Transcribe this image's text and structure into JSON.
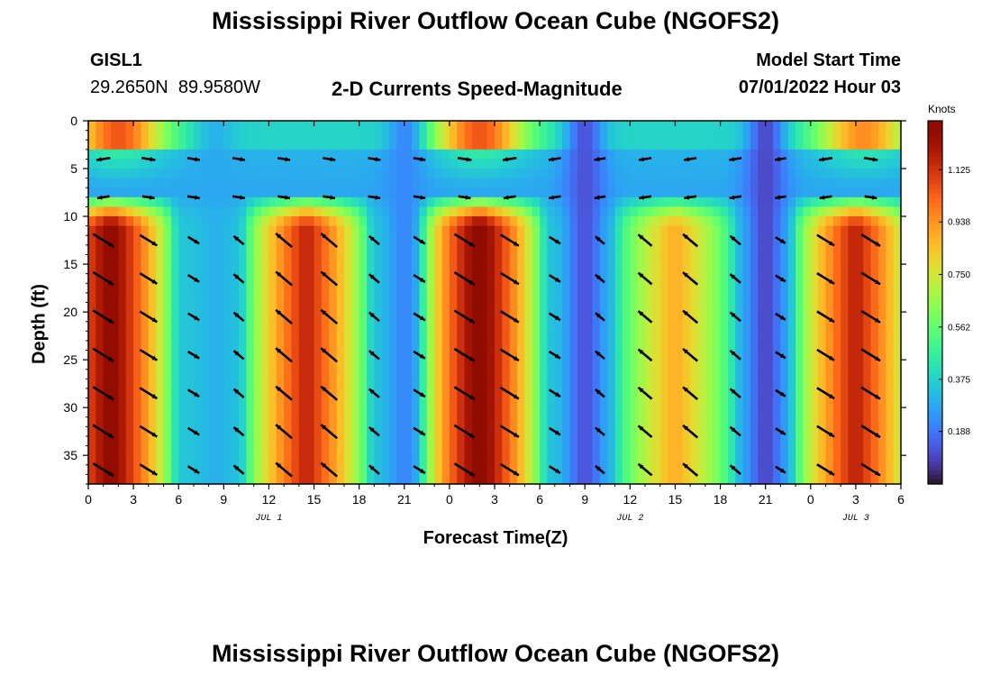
{
  "page": {
    "title": "Mississippi River Outflow Ocean Cube (NGOFS2)",
    "title_repeat": "Mississippi River Outflow Ocean Cube (NGOFS2)",
    "station_id": "GISL1",
    "station_coords": "29.2650N  89.9580W",
    "subtitle": "2-D Currents Speed-Magnitude",
    "model_start_label": "Model Start Time",
    "model_start_value": "07/01/2022 Hour 03"
  },
  "chart_data": {
    "type": "heatmap",
    "xlabel": "Forecast Time(Z)",
    "ylabel": "Depth (ft)",
    "x_tick_labels": [
      "0",
      "3",
      "6",
      "9",
      "12",
      "15",
      "18",
      "21",
      "0",
      "3",
      "6",
      "9",
      "12",
      "15",
      "18",
      "21",
      "0",
      "3",
      "6"
    ],
    "x_range_hours": [
      0,
      54
    ],
    "date_labels": [
      {
        "text": "JUL 1",
        "hour": 12
      },
      {
        "text": "JUL 2",
        "hour": 36
      },
      {
        "text": "JUL 3",
        "hour": 51
      }
    ],
    "y_tick_labels": [
      "0",
      "5",
      "10",
      "15",
      "20",
      "25",
      "30",
      "35"
    ],
    "ylim": [
      0,
      38
    ],
    "colorbar": {
      "title": "Knots",
      "tick_labels": [
        "0.188",
        "0.375",
        "0.562",
        "0.750",
        "0.938",
        "1.125"
      ],
      "range": [
        0,
        1.3
      ]
    },
    "bottom_layer_peaks": [
      {
        "hour": 1.5,
        "speed": 1.3
      },
      {
        "hour": 14.5,
        "speed": 1.17
      },
      {
        "hour": 26.0,
        "speed": 1.32
      },
      {
        "hour": 39.0,
        "speed": 0.9
      },
      {
        "hour": 51.0,
        "speed": 1.18
      }
    ],
    "surface_peaks": [
      {
        "hour": 2.0,
        "speed": 1.05
      },
      {
        "hour": 26.0,
        "speed": 1.05
      },
      {
        "hour": 51.5,
        "speed": 0.95
      }
    ],
    "speed_minima": [
      {
        "hour": 8.5,
        "speed": 0.3
      },
      {
        "hour": 21.0,
        "speed": 0.22
      },
      {
        "hour": 33.0,
        "speed": 0.12
      },
      {
        "hour": 45.0,
        "speed": 0.1
      }
    ],
    "grid": false,
    "legend": "colorbar-right"
  },
  "colors": {
    "background": "#ffffff",
    "axis": "#000000",
    "vector": "#000000"
  }
}
